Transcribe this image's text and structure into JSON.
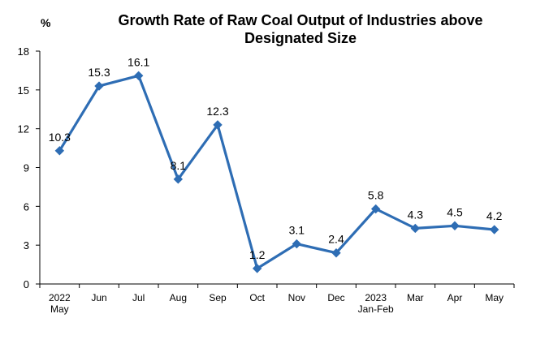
{
  "chart_data": {
    "type": "line",
    "title_lines": [
      "Growth Rate of Raw Coal Output of Industries above",
      "Designated Size"
    ],
    "unit": "%",
    "categories": [
      [
        "2022",
        "May"
      ],
      [
        "Jun"
      ],
      [
        "Jul"
      ],
      [
        "Aug"
      ],
      [
        "Sep"
      ],
      [
        "Oct"
      ],
      [
        "Nov"
      ],
      [
        "Dec"
      ],
      [
        "2023",
        "Jan-Feb"
      ],
      [
        "Mar"
      ],
      [
        "Apr"
      ],
      [
        "May"
      ]
    ],
    "values": [
      10.3,
      15.3,
      16.1,
      8.1,
      12.3,
      1.2,
      3.1,
      2.4,
      5.8,
      4.3,
      4.5,
      4.2
    ],
    "value_labels": [
      "10.3",
      "15.3",
      "16.1",
      "8.1",
      "12.3",
      "1.2",
      "3.1",
      "2.4",
      "5.8",
      "4.3",
      "4.5",
      "4.2"
    ],
    "ylim": [
      0,
      18
    ],
    "yticks": [
      0,
      3,
      6,
      9,
      12,
      15,
      18
    ],
    "series_color": "#2E6DB4",
    "marker": "diamond",
    "grid": false
  }
}
